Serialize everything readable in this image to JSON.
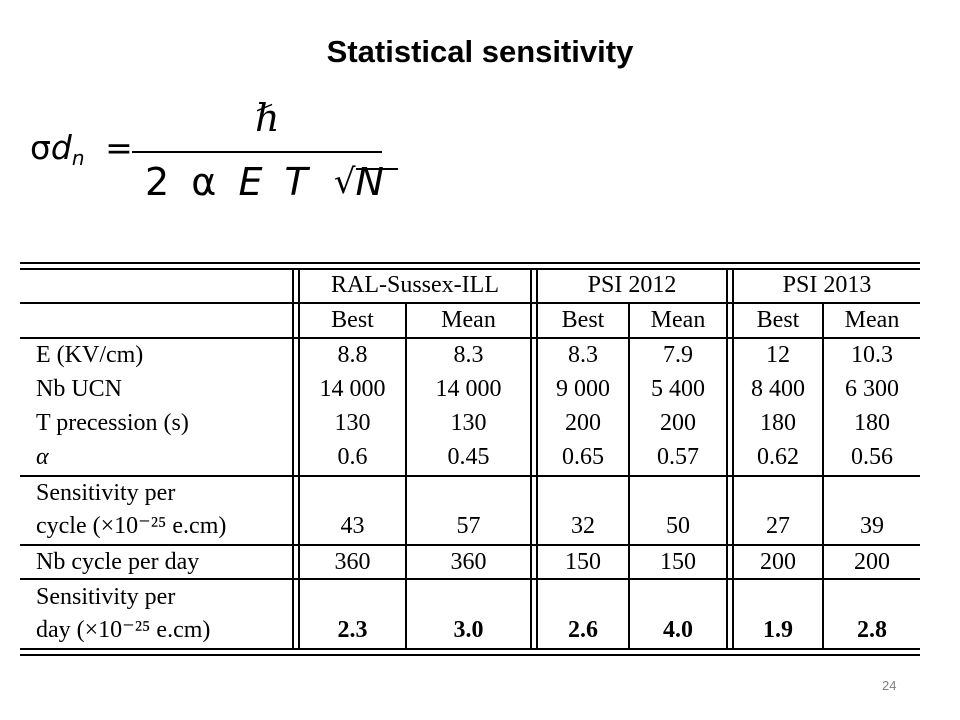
{
  "slide": {
    "title": "Statistical sensitivity",
    "page_number": "24"
  },
  "formula": {
    "lhs_sigma": "σ",
    "lhs_d": "d",
    "lhs_sub": "n",
    "equals": "=",
    "numerator": "ℏ",
    "den_two": "2",
    "den_alpha": "α",
    "den_E": "E",
    "den_T": "T",
    "den_sqrt": "√",
    "den_N": "N"
  },
  "table": {
    "groups": [
      "RAL-Sussex-ILL",
      "PSI 2012",
      "PSI 2013"
    ],
    "subheaders": [
      "Best",
      "Mean",
      "Best",
      "Mean",
      "Best",
      "Mean"
    ],
    "rows": [
      {
        "label": "E (KV/cm)",
        "values": [
          "8.8",
          "8.3",
          "8.3",
          "7.9",
          "12",
          "10.3"
        ]
      },
      {
        "label": "Nb UCN",
        "values": [
          "14 000",
          "14 000",
          "9 000",
          "5 400",
          "8 400",
          "6 300"
        ]
      },
      {
        "label": "T precession (s)",
        "values": [
          "130",
          "130",
          "200",
          "200",
          "180",
          "180"
        ]
      },
      {
        "label": "α",
        "values": [
          "0.6",
          "0.45",
          "0.65",
          "0.57",
          "0.62",
          "0.56"
        ]
      }
    ],
    "sens_cycle": {
      "label_line1": "Sensitivity per",
      "label_line2": "cycle (×10⁻²⁵ e.cm)",
      "values": [
        "43",
        "57",
        "32",
        "50",
        "27",
        "39"
      ]
    },
    "cycles_per_day": {
      "label": "Nb cycle per day",
      "values": [
        "360",
        "360",
        "150",
        "150",
        "200",
        "200"
      ]
    },
    "sens_day": {
      "label_line1": "Sensitivity per",
      "label_line2": "day (×10⁻²⁵ e.cm)",
      "values": [
        "2.3",
        "3.0",
        "2.6",
        "4.0",
        "1.9",
        "2.8"
      ]
    }
  }
}
